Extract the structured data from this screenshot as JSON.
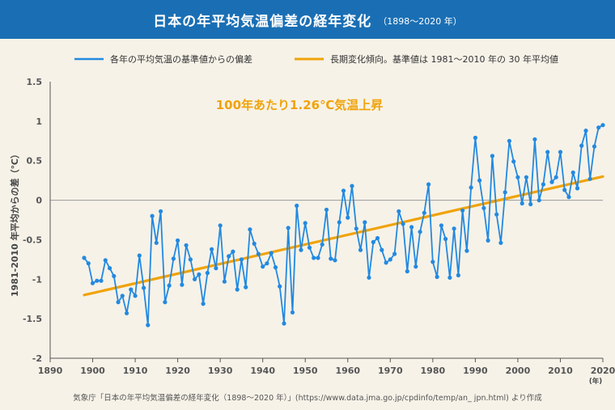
{
  "title": "日本の年平均気温偏差の経年変化",
  "subtitle": "（1898〜2020 年）",
  "source": "気象庁「日本の年平均気温偏差の経年変化（1898〜2020 年）」(https://www.data.jma.go.jp/cpdinfo/temp/an_ jpn.html) より作成",
  "colors": {
    "banner": "#1a6fb4",
    "series": "#2389e0",
    "trend": "#f0a30a",
    "annotation": "#f0a30a",
    "axis": "#555555"
  },
  "chart_data": {
    "type": "line",
    "ylabel": "1981-2010 年平均からの差（℃）",
    "xunit": "(年)",
    "xlim": [
      1890,
      2020
    ],
    "ylim": [
      -2,
      1.5
    ],
    "xticks": [
      "1890",
      "1900",
      "1910",
      "1920",
      "1930",
      "1940",
      "1950",
      "1960",
      "1970",
      "1980",
      "1990",
      "2000",
      "2010",
      "2020"
    ],
    "yticks": [
      "1.5",
      "1",
      "0.5",
      "0",
      "-0.5",
      "-1",
      "-1.5",
      "-2"
    ],
    "annotation": "100年あたり1.26℃気温上昇",
    "series": [
      {
        "name": "各年の平均気温の基準値からの偏差",
        "x_start": 1898,
        "values": [
          -0.73,
          -0.8,
          -1.05,
          -1.02,
          -1.02,
          -0.76,
          -0.86,
          -0.96,
          -1.29,
          -1.21,
          -1.43,
          -1.13,
          -1.21,
          -0.7,
          -1.11,
          -1.58,
          -0.2,
          -0.54,
          -0.14,
          -1.29,
          -1.08,
          -0.74,
          -0.51,
          -1.07,
          -0.57,
          -0.75,
          -1.0,
          -0.94,
          -1.31,
          -0.92,
          -0.62,
          -0.86,
          -0.32,
          -1.03,
          -0.71,
          -0.65,
          -1.13,
          -0.75,
          -1.1,
          -0.37,
          -0.55,
          -0.68,
          -0.84,
          -0.8,
          -0.67,
          -0.85,
          -1.09,
          -1.56,
          -0.35,
          -1.42,
          -0.07,
          -0.63,
          -0.29,
          -0.6,
          -0.73,
          -0.73,
          -0.56,
          -0.12,
          -0.74,
          -0.76,
          -0.28,
          0.12,
          -0.22,
          0.18,
          -0.36,
          -0.63,
          -0.28,
          -0.98,
          -0.53,
          -0.48,
          -0.63,
          -0.79,
          -0.75,
          -0.68,
          -0.14,
          -0.3,
          -0.9,
          -0.34,
          -0.84,
          -0.4,
          -0.16,
          0.2,
          -0.78,
          -0.97,
          -0.32,
          -0.49,
          -0.98,
          -0.36,
          -0.95,
          -0.13,
          -0.64,
          0.16,
          0.79,
          0.25,
          -0.1,
          -0.51,
          0.56,
          -0.18,
          -0.54,
          0.1,
          0.75,
          0.49,
          0.29,
          -0.04,
          0.29,
          -0.05,
          0.77,
          0.0,
          0.2,
          0.61,
          0.23,
          0.29,
          0.61,
          0.13,
          0.04,
          0.35,
          0.15,
          0.69,
          0.88,
          0.27,
          0.68,
          0.92,
          0.95
        ]
      },
      {
        "name": "長期変化傾向。基準値は 1981〜2010 年の 30 年平均値",
        "x": [
          1898,
          2020
        ],
        "values": [
          -1.2,
          0.3
        ]
      }
    ]
  }
}
